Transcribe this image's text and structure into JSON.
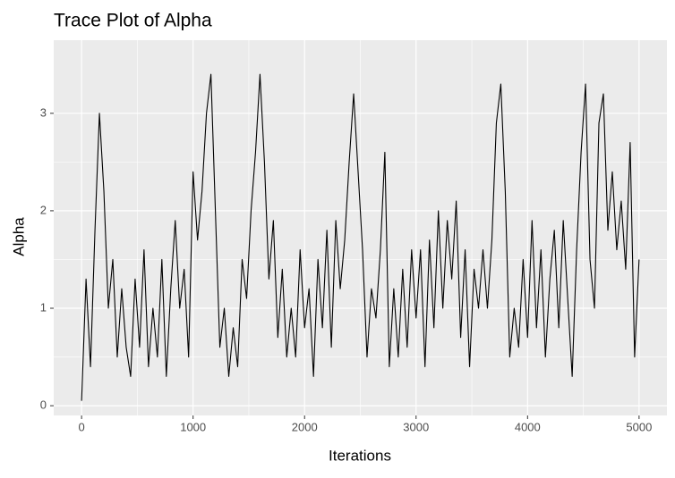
{
  "chart_data": {
    "type": "line",
    "title": "Trace Plot of Alpha",
    "x_label": "Iterations",
    "y_label": "Alpha",
    "x": [
      0,
      40,
      80,
      120,
      160,
      200,
      240,
      280,
      320,
      360,
      400,
      440,
      480,
      520,
      560,
      600,
      640,
      680,
      720,
      760,
      800,
      840,
      880,
      920,
      960,
      1000,
      1040,
      1080,
      1120,
      1160,
      1200,
      1240,
      1280,
      1320,
      1360,
      1400,
      1440,
      1480,
      1520,
      1560,
      1600,
      1640,
      1680,
      1720,
      1760,
      1800,
      1840,
      1880,
      1920,
      1960,
      2000,
      2040,
      2080,
      2120,
      2160,
      2200,
      2240,
      2280,
      2320,
      2360,
      2400,
      2440,
      2480,
      2520,
      2560,
      2600,
      2640,
      2680,
      2720,
      2760,
      2800,
      2840,
      2880,
      2920,
      2960,
      3000,
      3040,
      3080,
      3120,
      3160,
      3200,
      3240,
      3280,
      3320,
      3360,
      3400,
      3440,
      3480,
      3520,
      3560,
      3600,
      3640,
      3680,
      3720,
      3760,
      3800,
      3840,
      3880,
      3920,
      3960,
      4000,
      4040,
      4080,
      4120,
      4160,
      4200,
      4240,
      4280,
      4320,
      4360,
      4400,
      4440,
      4480,
      4520,
      4560,
      4600,
      4640,
      4680,
      4720,
      4760,
      4800,
      4840,
      4880,
      4920,
      4960,
      5000
    ],
    "series": [
      {
        "name": "Alpha",
        "color": "#000000",
        "values": [
          0.05,
          1.3,
          0.4,
          1.8,
          3.0,
          2.2,
          1.0,
          1.5,
          0.5,
          1.2,
          0.6,
          0.3,
          1.3,
          0.6,
          1.6,
          0.4,
          1.0,
          0.5,
          1.5,
          0.3,
          1.2,
          1.9,
          1.0,
          1.4,
          0.5,
          2.4,
          1.7,
          2.2,
          3.0,
          3.4,
          2.0,
          0.6,
          1.0,
          0.3,
          0.8,
          0.4,
          1.5,
          1.1,
          2.0,
          2.6,
          3.4,
          2.5,
          1.3,
          1.9,
          0.7,
          1.4,
          0.5,
          1.0,
          0.5,
          1.6,
          0.8,
          1.2,
          0.3,
          1.5,
          0.8,
          1.8,
          0.6,
          1.9,
          1.2,
          1.7,
          2.5,
          3.2,
          2.4,
          1.6,
          0.5,
          1.2,
          0.9,
          1.6,
          2.6,
          0.4,
          1.2,
          0.5,
          1.4,
          0.6,
          1.6,
          0.9,
          1.6,
          0.4,
          1.7,
          0.8,
          2.0,
          1.0,
          1.9,
          1.3,
          2.1,
          0.7,
          1.6,
          0.4,
          1.4,
          1.0,
          1.6,
          1.0,
          1.7,
          2.9,
          3.3,
          2.2,
          0.5,
          1.0,
          0.6,
          1.5,
          0.7,
          1.9,
          0.8,
          1.6,
          0.5,
          1.3,
          1.8,
          0.8,
          1.9,
          1.1,
          0.3,
          1.6,
          2.6,
          3.3,
          1.5,
          1.0,
          2.9,
          3.2,
          1.8,
          2.4,
          1.6,
          2.1,
          1.4,
          2.7,
          0.5,
          1.5
        ]
      }
    ],
    "xlim": [
      -250,
      5250
    ],
    "xticks": [
      0,
      1000,
      2000,
      3000,
      4000,
      5000
    ],
    "ylim": [
      -0.1,
      3.75
    ],
    "yticks": [
      0,
      1,
      2,
      3
    ],
    "grid": true,
    "minor_grid": true,
    "panel_color": "#ebebeb"
  }
}
